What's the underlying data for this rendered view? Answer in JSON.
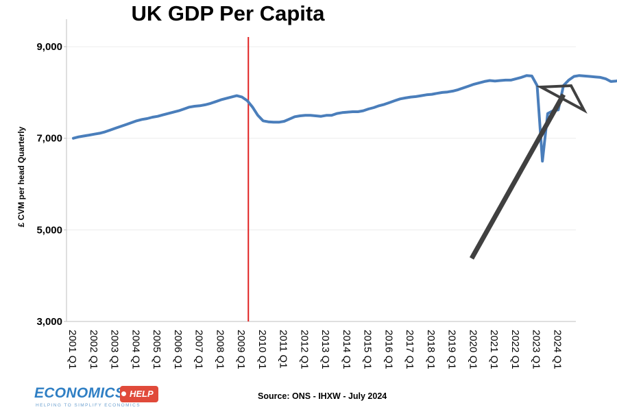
{
  "chart_data": {
    "type": "line",
    "title": "UK GDP Per Capita",
    "xlabel": "",
    "ylabel": "£ CVM per head Quarterly",
    "ylim": [
      3000,
      9600
    ],
    "yticks": [
      3000,
      5000,
      7000,
      9000
    ],
    "ytick_labels": [
      "3,000",
      "5,000",
      "7,000",
      "9,000"
    ],
    "xtick_labels": [
      "2001 Q1",
      "2002 Q1",
      "2003 Q1",
      "2004 Q1",
      "2005 Q1",
      "2006 Q1",
      "2007 Q1",
      "2008 Q1",
      "2009 Q1",
      "2010 Q1",
      "2011 Q1",
      "2012 Q1",
      "2013 Q1",
      "2014 Q1",
      "2015 Q1",
      "2016 Q1",
      "2017 Q1",
      "2018 Q1",
      "2019 Q1",
      "2020 Q1",
      "2021 Q1",
      "2022 Q1",
      "2023 Q1",
      "2024 Q1"
    ],
    "grid": true,
    "line_color": "#4a7ebb",
    "marker_line": {
      "at": "2010 Q1",
      "color": "#e02020"
    },
    "annotation": {
      "type": "arrow",
      "color": "#404040"
    },
    "series": [
      {
        "x_start": "2001 Q1",
        "frequency": "quarterly",
        "values": [
          7000,
          7030,
          7050,
          7070,
          7090,
          7110,
          7140,
          7180,
          7220,
          7260,
          7300,
          7340,
          7380,
          7410,
          7430,
          7460,
          7480,
          7510,
          7540,
          7570,
          7600,
          7640,
          7680,
          7700,
          7710,
          7730,
          7760,
          7800,
          7840,
          7870,
          7900,
          7930,
          7900,
          7820,
          7680,
          7500,
          7380,
          7360,
          7350,
          7350,
          7370,
          7420,
          7470,
          7490,
          7500,
          7500,
          7490,
          7480,
          7500,
          7500,
          7540,
          7560,
          7570,
          7580,
          7580,
          7600,
          7640,
          7670,
          7710,
          7740,
          7780,
          7820,
          7860,
          7880,
          7900,
          7910,
          7930,
          7950,
          7960,
          7980,
          8000,
          8010,
          8030,
          8060,
          8100,
          8140,
          8180,
          8210,
          8240,
          8260,
          8250,
          8260,
          8270,
          8270,
          8300,
          8330,
          8370,
          8360,
          8150,
          6500,
          7540,
          7600,
          7620,
          8150,
          8270,
          8350,
          8370,
          8360,
          8350,
          8340,
          8330,
          8300,
          8240,
          8250,
          8270
        ]
      }
    ]
  },
  "footer": {
    "source": "Source: ONS - IHXW - July 2024"
  },
  "logo": {
    "word": "ECONOMICS",
    "badge": "HELP",
    "tagline": "HELPING TO SIMPLIFY ECONOMICS"
  }
}
